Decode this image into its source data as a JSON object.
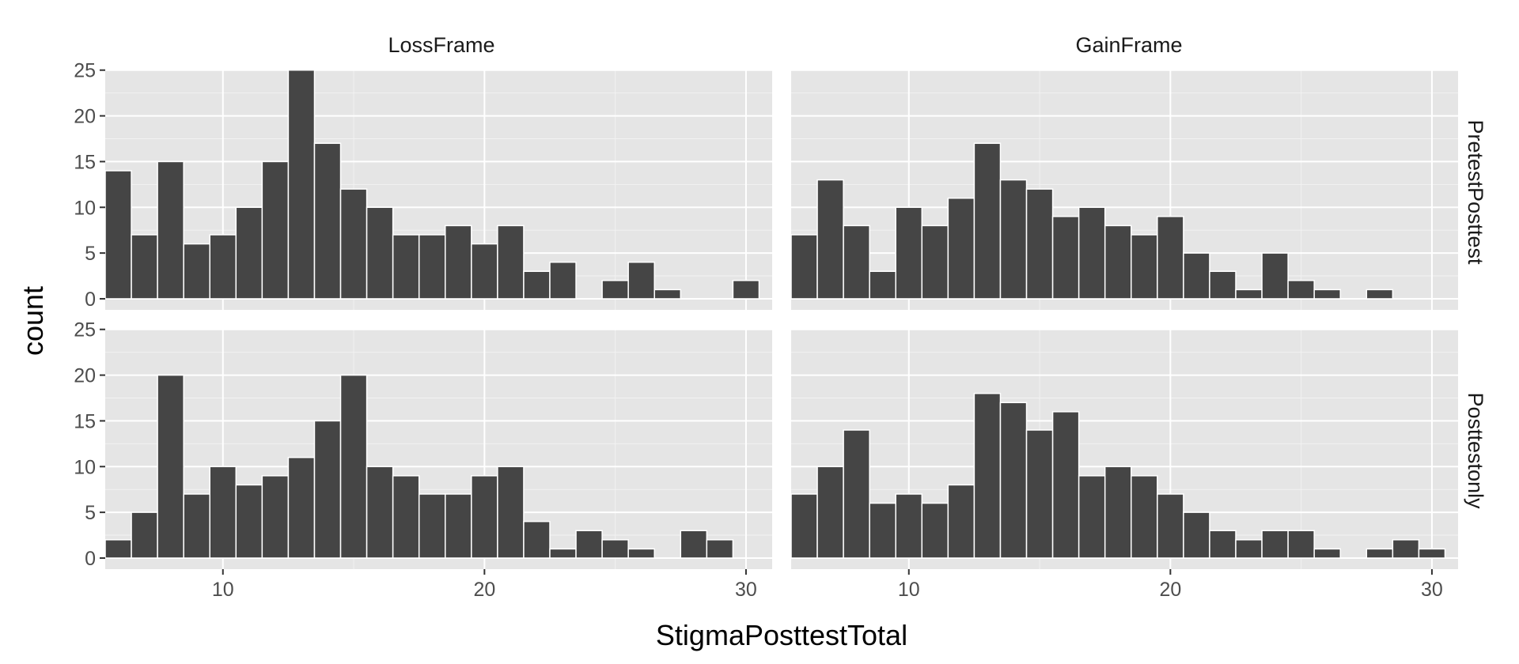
{
  "chart_data": {
    "type": "bar",
    "subtype": "faceted-histogram",
    "xlabel": "StigmaPosttestTotal",
    "ylabel": "count",
    "col_facets": [
      "LossFrame",
      "GainFrame"
    ],
    "row_facets": [
      "PretestPosttest",
      "Posttestonly"
    ],
    "xlim": [
      5.5,
      31
    ],
    "ylim": [
      0,
      25
    ],
    "x_ticks": [
      10,
      20,
      30
    ],
    "y_ticks": [
      0,
      5,
      10,
      15,
      20,
      25
    ],
    "grid": true,
    "bins": [
      6,
      7,
      8,
      9,
      10,
      11,
      12,
      13,
      14,
      15,
      16,
      17,
      18,
      19,
      20,
      21,
      22,
      23,
      24,
      25,
      26,
      27,
      28,
      29,
      30
    ],
    "panels": [
      {
        "row": "PretestPosttest",
        "col": "LossFrame",
        "values": [
          14,
          7,
          15,
          6,
          7,
          10,
          15,
          25,
          17,
          12,
          10,
          7,
          7,
          8,
          6,
          8,
          3,
          4,
          0,
          2,
          4,
          1,
          0,
          0,
          2
        ]
      },
      {
        "row": "PretestPosttest",
        "col": "GainFrame",
        "values": [
          7,
          13,
          8,
          3,
          10,
          8,
          11,
          17,
          13,
          12,
          9,
          10,
          8,
          7,
          9,
          5,
          3,
          1,
          5,
          2,
          1,
          0,
          1,
          0,
          0
        ]
      },
      {
        "row": "Posttestonly",
        "col": "LossFrame",
        "values": [
          2,
          5,
          20,
          7,
          10,
          8,
          9,
          11,
          15,
          20,
          10,
          9,
          7,
          7,
          9,
          10,
          4,
          1,
          3,
          2,
          1,
          0,
          3,
          2,
          0
        ]
      },
      {
        "row": "Posttestonly",
        "col": "GainFrame",
        "values": [
          7,
          10,
          14,
          6,
          7,
          6,
          8,
          18,
          17,
          14,
          16,
          9,
          10,
          9,
          7,
          5,
          3,
          2,
          3,
          3,
          1,
          0,
          1,
          2,
          1
        ]
      }
    ],
    "colors": {
      "bar": "#454545",
      "bar_outline": "#ffffff",
      "panel_bg": "#e5e5e5",
      "grid_major": "#ffffff",
      "grid_minor": "#f2f2f2"
    }
  }
}
